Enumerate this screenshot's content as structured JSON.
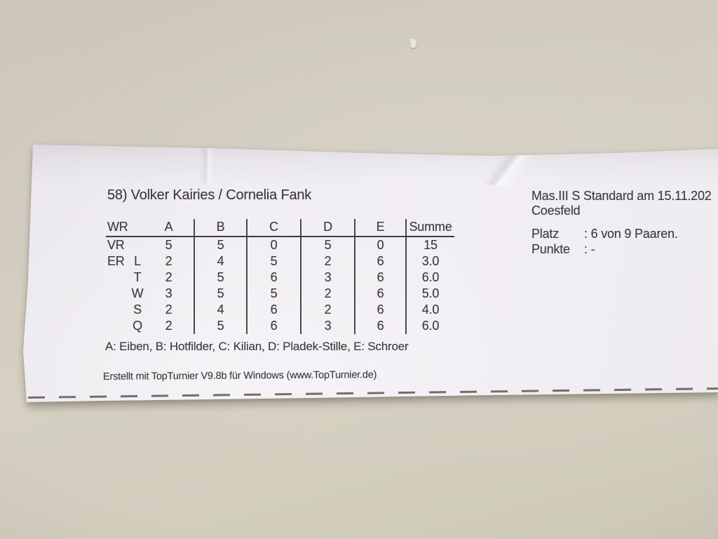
{
  "colors": {
    "wall_bg": "#d2ccc0",
    "paper": "#f1eef3",
    "ink": "#3b393c",
    "table_line": "#4b4849",
    "tear_dash": "#56524c"
  },
  "header": {
    "title": "58) Volker Kairies / Cornelia Fank"
  },
  "event": {
    "name": "Mas.III S Standard am 15.11.202",
    "location": "Coesfeld"
  },
  "result": {
    "platz_label": "Platz",
    "platz_value": ": 6 von 9 Paaren.",
    "punkte_label": "Punkte",
    "punkte_value": ": -"
  },
  "table": {
    "headers": [
      "WR",
      "A",
      "B",
      "C",
      "D",
      "E",
      "Summe"
    ],
    "rows": [
      {
        "round": "VR",
        "dance": "",
        "scores": [
          "5",
          "5",
          "0",
          "5",
          "0"
        ],
        "sum": "15"
      },
      {
        "round": "ER",
        "dance": "L",
        "scores": [
          "2",
          "4",
          "5",
          "2",
          "6"
        ],
        "sum": "3.0"
      },
      {
        "round": "",
        "dance": "T",
        "scores": [
          "2",
          "5",
          "6",
          "3",
          "6"
        ],
        "sum": "6.0"
      },
      {
        "round": "",
        "dance": "W",
        "scores": [
          "3",
          "5",
          "5",
          "2",
          "6"
        ],
        "sum": "5.0"
      },
      {
        "round": "",
        "dance": "S",
        "scores": [
          "2",
          "4",
          "6",
          "2",
          "6"
        ],
        "sum": "4.0"
      },
      {
        "round": "",
        "dance": "Q",
        "scores": [
          "2",
          "5",
          "6",
          "3",
          "6"
        ],
        "sum": "6.0"
      }
    ]
  },
  "legend": "A: Eiben, B: Hotfilder, C: Kilian, D: Pladek-Stille, E: Schroer",
  "footer": "Erstellt mit TopTurnier V9.8b für Windows (www.TopTurnier.de)"
}
